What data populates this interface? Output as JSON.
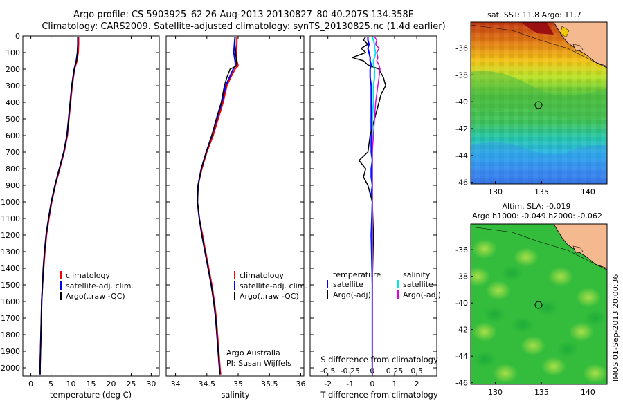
{
  "title": {
    "line1": "Argo profile: CS 5903925_62 26-Aug-2013 20130827_80 40.207S 134.358E",
    "line2": "Climatology: CARS2009. Satellite-adjusted climatology: synTS_20130825.nc (1.4d earlier)"
  },
  "colors": {
    "climatology": "#ff0000",
    "satellite": "#0000ff",
    "argo": "#000000",
    "satellite_sal": "#00e5e5",
    "argo_sal": "#e000e0"
  },
  "chart_data": [
    {
      "type": "line",
      "panel": "temperature",
      "xlabel": "temperature (deg C)",
      "ylabel": "",
      "xlim": [
        -2,
        32
      ],
      "ylim": [
        2050,
        0
      ],
      "xticks": [
        0,
        5,
        10,
        15,
        20,
        25,
        30
      ],
      "yticks": [
        0,
        100,
        200,
        300,
        400,
        500,
        600,
        700,
        800,
        900,
        1000,
        1100,
        1200,
        1300,
        1400,
        1500,
        1600,
        1700,
        1800,
        1900,
        2000
      ],
      "legend": [
        "climatology",
        "satellite-adj. clim.",
        "Argo(..raw -QC)"
      ],
      "depth": [
        5,
        50,
        100,
        150,
        200,
        250,
        300,
        400,
        500,
        600,
        700,
        800,
        900,
        1000,
        1100,
        1200,
        1300,
        1400,
        1500,
        1600,
        1700,
        1800,
        1900,
        2000,
        2040
      ],
      "series": [
        {
          "name": "climatology",
          "values": [
            11.9,
            11.9,
            11.8,
            11.5,
            10.9,
            10.6,
            10.3,
            9.9,
            9.5,
            9.1,
            8.3,
            7.2,
            6.1,
            5.2,
            4.5,
            3.9,
            3.5,
            3.2,
            2.9,
            2.7,
            2.6,
            2.5,
            2.4,
            2.3,
            2.3
          ]
        },
        {
          "name": "satellite-adj. clim.",
          "values": [
            11.7,
            11.7,
            11.6,
            11.3,
            10.8,
            10.5,
            10.2,
            9.8,
            9.4,
            9.0,
            8.2,
            7.1,
            6.0,
            5.1,
            4.4,
            3.8,
            3.4,
            3.1,
            2.9,
            2.7,
            2.6,
            2.5,
            2.4,
            2.3,
            2.3
          ]
        },
        {
          "name": "Argo(..raw -QC)",
          "values": [
            11.7,
            11.7,
            11.6,
            11.4,
            10.8,
            10.5,
            10.2,
            9.8,
            9.4,
            9.0,
            8.2,
            7.1,
            6.0,
            5.1,
            4.4,
            3.8,
            3.4,
            3.1,
            2.9,
            2.7,
            2.6,
            2.5,
            2.4,
            2.3,
            2.3
          ]
        }
      ]
    },
    {
      "type": "line",
      "panel": "salinity",
      "xlabel": "salinity",
      "xlim": [
        33.85,
        36.05
      ],
      "ylim": [
        2050,
        0
      ],
      "xticks": [
        34,
        34.5,
        35,
        35.5,
        36
      ],
      "legend": [
        "climatology",
        "satellite-adj. clim.",
        "Argo(..raw -QC)"
      ],
      "annotation": [
        "Argo Australia",
        "PI: Susan Wijffels"
      ],
      "depth": [
        5,
        50,
        100,
        150,
        180,
        200,
        250,
        300,
        400,
        500,
        600,
        700,
        800,
        900,
        1000,
        1100,
        1200,
        1300,
        1400,
        1500,
        1600,
        1700,
        1800,
        1900,
        2000,
        2040
      ],
      "series": [
        {
          "name": "climatology",
          "values": [
            34.98,
            34.98,
            34.97,
            34.98,
            35.0,
            34.95,
            34.88,
            34.82,
            34.76,
            34.68,
            34.6,
            34.5,
            34.42,
            34.36,
            34.35,
            34.38,
            34.43,
            34.48,
            34.53,
            34.58,
            34.62,
            34.65,
            34.67,
            34.69,
            34.71,
            34.72
          ]
        },
        {
          "name": "satellite-adj. clim.",
          "values": [
            34.95,
            34.94,
            34.93,
            34.95,
            34.96,
            34.92,
            34.86,
            34.8,
            34.74,
            34.66,
            34.58,
            34.49,
            34.41,
            34.36,
            34.35,
            34.38,
            34.42,
            34.47,
            34.52,
            34.57,
            34.61,
            34.64,
            34.66,
            34.68,
            34.7,
            34.71
          ]
        },
        {
          "name": "Argo(..raw -QC)",
          "values": [
            34.95,
            34.95,
            34.96,
            34.97,
            34.98,
            34.87,
            34.82,
            34.78,
            34.73,
            34.65,
            34.58,
            34.49,
            34.41,
            34.36,
            34.35,
            34.38,
            34.42,
            34.47,
            34.52,
            34.57,
            34.61,
            34.64,
            34.66,
            34.68,
            34.7,
            34.71
          ]
        }
      ]
    },
    {
      "type": "line",
      "panel": "difference",
      "xlabel": "T difference from climatology",
      "x2label": "S difference from climatology",
      "xlim": [
        -2.8,
        2.9
      ],
      "ylim": [
        2050,
        0
      ],
      "xticks": [
        -2,
        -1,
        0,
        1,
        2
      ],
      "x2ticks": [
        "-0.5",
        "-0.25",
        "0",
        "0.25",
        "0.5"
      ],
      "legend_temperature": {
        "title": "temperature",
        "items": [
          "satellite",
          "Argo(-adj)"
        ]
      },
      "legend_salinity": {
        "title": "salinity",
        "items": [
          "satellite",
          "Argo(-adj)"
        ]
      },
      "depth": [
        5,
        25,
        50,
        75,
        100,
        130,
        150,
        175,
        200,
        250,
        300,
        350,
        400,
        500,
        600,
        700,
        750,
        800,
        850,
        900,
        950,
        1000,
        1200,
        1500,
        2000,
        2040
      ],
      "series": [
        {
          "name": "temperature satellite",
          "values": [
            -0.2,
            -0.2,
            -0.15,
            -0.2,
            -0.15,
            -0.1,
            -0.1,
            -0.05,
            -0.1,
            -0.1,
            -0.05,
            -0.05,
            -0.05,
            -0.05,
            -0.05,
            -0.05,
            0,
            -0.05,
            -0.05,
            0,
            -0.05,
            0,
            -0.05,
            0,
            0,
            0
          ]
        },
        {
          "name": "temperature Argo(-adj)",
          "values": [
            -0.3,
            -0.4,
            -0.2,
            -0.5,
            -0.3,
            -0.9,
            -0.4,
            -0.2,
            0.3,
            0.5,
            0.6,
            0.4,
            0.3,
            0.1,
            -0.1,
            -0.2,
            -0.6,
            -0.3,
            -0.4,
            -0.2,
            -0.1,
            0,
            0.05,
            0,
            0,
            0
          ]
        },
        {
          "name": "salinity satellite",
          "values": [
            0,
            0.05,
            0.1,
            0.1,
            0.15,
            0.1,
            0.05,
            0.05,
            0.1,
            0.1,
            0.05,
            0.05,
            0.05,
            0,
            0,
            0,
            0,
            0,
            0,
            0,
            0,
            0,
            0,
            0,
            0,
            0
          ]
        },
        {
          "name": "salinity Argo(-adj)",
          "values": [
            0.1,
            0.2,
            0.15,
            0.3,
            0.2,
            0.25,
            0.2,
            0.3,
            0.35,
            0.3,
            0.25,
            0.2,
            0.15,
            0.1,
            0.05,
            0,
            0,
            0,
            0,
            0,
            0,
            0,
            0,
            0,
            0,
            0
          ]
        }
      ]
    },
    {
      "type": "heatmap",
      "panel": "sst_map",
      "title": "sat. SST: 11.8 Argo: 11.7",
      "xticks": [
        "130",
        "135",
        "140"
      ],
      "yticks": [
        "-36",
        "-38",
        "-40",
        "-42",
        "-44",
        "-46"
      ],
      "marker": {
        "lon": 134.36,
        "lat": -40.21
      }
    },
    {
      "type": "heatmap",
      "panel": "sla_map",
      "title1": "Altim. SLA: -0.019",
      "title2": "Argo h1000: -0.049 h2000: -0.062",
      "xticks": [
        "130",
        "135",
        "140"
      ],
      "yticks": [
        "-36",
        "-38",
        "-40",
        "-42",
        "-44",
        "-46"
      ],
      "marker": {
        "lon": 134.36,
        "lat": -40.21
      }
    }
  ],
  "footer": {
    "stamp": "IMOS 01-Sep-2013 20:00:36"
  }
}
